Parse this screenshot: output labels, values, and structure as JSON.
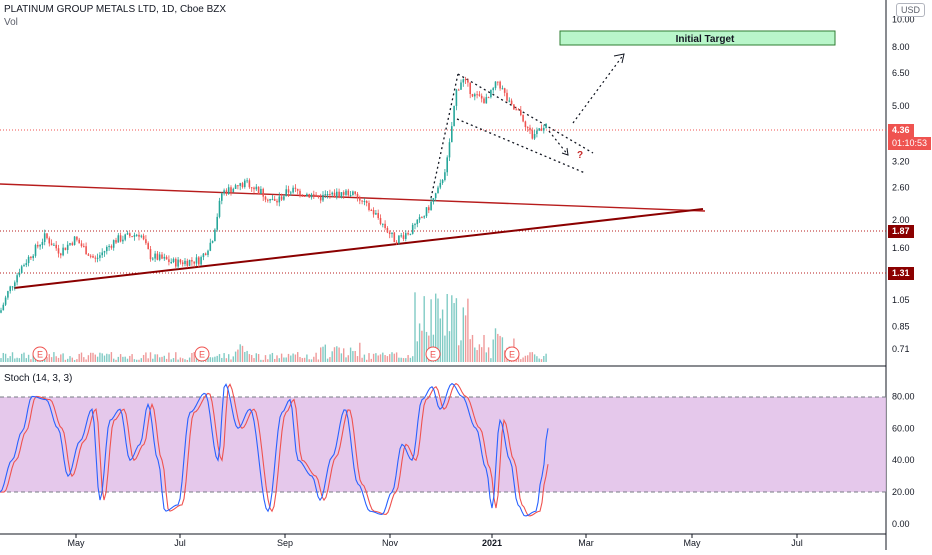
{
  "header": {
    "symbol": "PLATINUM GROUP METALS LTD, 1D, Cboe BZX",
    "volume_label": "Vol"
  },
  "price_axis": {
    "currency": "USD",
    "ticks": [
      "10.00",
      "8.00",
      "6.50",
      "5.00",
      "3.20",
      "2.60",
      "2.00",
      "1.60",
      "1.05",
      "0.85",
      "0.71"
    ]
  },
  "badges": {
    "last_price": "4.36",
    "countdown": "01:10:53",
    "level_high": "1.87",
    "level_low": "1.31"
  },
  "annotations": {
    "target_label": "Initial Target",
    "question_mark": "?",
    "earnings_marker": "E"
  },
  "stoch": {
    "title": "Stoch (14, 3, 3)",
    "ticks": [
      "80.00",
      "60.00",
      "40.00",
      "20.00",
      "0.00"
    ],
    "upper_band": 80,
    "lower_band": 20
  },
  "time_axis": {
    "labels": [
      "May",
      "Jul",
      "Sep",
      "Nov",
      "2021",
      "Mar",
      "May",
      "Jul"
    ]
  },
  "colors": {
    "up": "#26a69a",
    "down": "#ef5350",
    "trendline": "#b71c1c",
    "stoch_k": "#2962ff",
    "stoch_d": "#ef5350",
    "stoch_band_fill": "#e1bee7",
    "target_fill": "#b9f6ca",
    "badge_last": "#ef5350",
    "badge_level": "#8b0000"
  },
  "chart_data": {
    "type": "candlestick",
    "scale": "log",
    "price_range": [
      0.65,
      11.5
    ],
    "horizontal_levels": [
      1.87,
      1.31,
      4.36
    ],
    "key_prices": [
      {
        "label": "start",
        "value": 0.95
      },
      {
        "label": "May peak",
        "value": 1.8
      },
      {
        "label": "Aug peak",
        "value": 2.75
      },
      {
        "label": "Nov low",
        "value": 1.7
      },
      {
        "label": "Dec peak",
        "value": 6.7
      },
      {
        "label": "last",
        "value": 4.36
      }
    ],
    "stoch_range": [
      0,
      100
    ]
  }
}
